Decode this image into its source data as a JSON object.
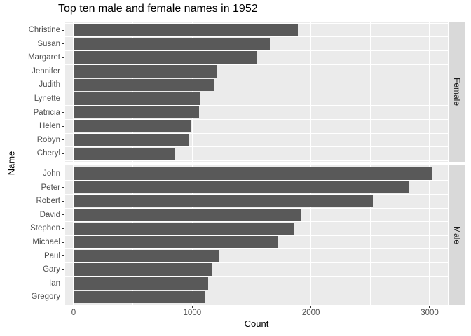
{
  "title": "Top ten male and female names in 1952",
  "axes": {
    "x_label": "Count",
    "y_label": "Name",
    "x_ticks": [
      0,
      1000,
      2000,
      3000
    ],
    "x_minor_gridlines": [
      500,
      1500,
      2500
    ]
  },
  "colors": {
    "bar": "#595959",
    "panel_bg": "#ebebeb",
    "strip_bg": "#d9d9d9",
    "grid": "#ffffff",
    "tick_text": "#4d4d4d",
    "strip_text": "#1a1a1a",
    "tick_mark": "#333333",
    "title_text": "#000000"
  },
  "chart_data": {
    "type": "bar",
    "orientation": "horizontal",
    "title": "Top ten male and female names in 1952",
    "xlabel": "Count",
    "ylabel": "Name",
    "xlim": [
      -71,
      3154
    ],
    "x_ticks": [
      0,
      1000,
      2000,
      3000
    ],
    "grid": true,
    "legend": false,
    "facet_strip_position": "right",
    "facets": [
      {
        "label": "Female",
        "categories": [
          "Christine",
          "Susan",
          "Margaret",
          "Jennifer",
          "Judith",
          "Lynette",
          "Patricia",
          "Helen",
          "Robyn",
          "Cheryl"
        ],
        "values": [
          1890,
          1655,
          1540,
          1210,
          1188,
          1062,
          1057,
          990,
          975,
          850
        ]
      },
      {
        "label": "Male",
        "categories": [
          "John",
          "Peter",
          "Robert",
          "David",
          "Stephen",
          "Michael",
          "Paul",
          "Gary",
          "Ian",
          "Gregory"
        ],
        "values": [
          3020,
          2830,
          2520,
          1915,
          1855,
          1725,
          1222,
          1164,
          1134,
          1110
        ]
      }
    ]
  }
}
